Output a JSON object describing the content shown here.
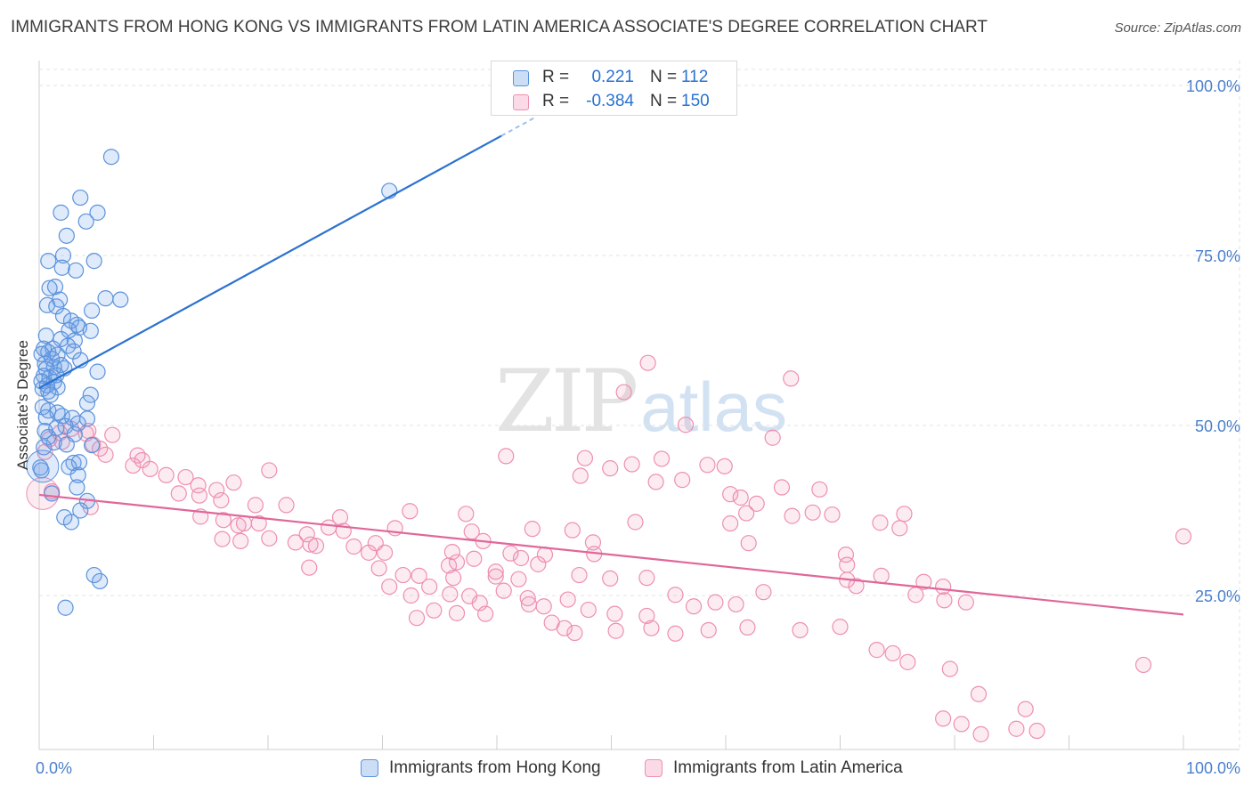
{
  "title": "IMMIGRANTS FROM HONG KONG VS IMMIGRANTS FROM LATIN AMERICA ASSOCIATE'S DEGREE CORRELATION CHART",
  "source": "Source: ZipAtlas.com",
  "watermark": {
    "zip": "ZIP",
    "atlas": "atlas"
  },
  "legend_top": {
    "rows": [
      {
        "r_label": "R =",
        "r_value": "0.221",
        "n_label": "N =",
        "n_value": "112",
        "color": "#5b9bd5"
      },
      {
        "r_label": "R =",
        "r_value": "-0.384",
        "n_label": "N =",
        "n_value": "150",
        "color": "#ee8fb0"
      }
    ]
  },
  "legend_bottom": [
    {
      "label": "Immigrants from Hong Kong",
      "color": "#5b9bd5"
    },
    {
      "label": "Immigrants from Latin America",
      "color": "#ee8fb0"
    }
  ],
  "colors": {
    "blue_fill": "rgba(110,160,230,0.22)",
    "blue_stroke": "#5b93dc",
    "blue_line": "#2a72d0",
    "pink_fill": "rgba(240,150,185,0.18)",
    "pink_stroke": "#ee8fb0",
    "pink_line": "#e0679a",
    "axis_text": "#4a80cc",
    "grid": "#e3e3e3"
  },
  "chart_data": {
    "type": "scatter",
    "title": "IMMIGRANTS FROM HONG KONG VS IMMIGRANTS FROM LATIN AMERICA ASSOCIATE'S DEGREE CORRELATION CHART",
    "xlabel": "",
    "ylabel": "Associate's Degree",
    "xlim": [
      0,
      100
    ],
    "ylim": [
      0,
      100
    ],
    "x_tick_labels": [
      "0.0%",
      "100.0%"
    ],
    "y_ticks": [
      25,
      50,
      75,
      100
    ],
    "y_tick_labels": [
      "25.0%",
      "50.0%",
      "75.0%",
      "100.0%"
    ],
    "grid": true,
    "legend_placement": "bottom-center",
    "series": [
      {
        "name": "Immigrants from Hong Kong",
        "trend": {
          "x0": 0,
          "y0": 55.5,
          "x1": 40.4,
          "y1": 92.6
        },
        "points": [
          [
            6.3,
            89.5
          ],
          [
            30.6,
            84.5
          ],
          [
            3.6,
            83.5
          ],
          [
            1.9,
            81.3
          ],
          [
            5.1,
            81.3
          ],
          [
            4.1,
            80.0
          ],
          [
            2.4,
            77.9
          ],
          [
            0.8,
            74.2
          ],
          [
            2.1,
            75.0
          ],
          [
            4.8,
            74.2
          ],
          [
            2.0,
            73.2
          ],
          [
            3.2,
            72.8
          ],
          [
            1.4,
            70.4
          ],
          [
            0.9,
            70.2
          ],
          [
            1.8,
            68.5
          ],
          [
            5.8,
            68.7
          ],
          [
            7.1,
            68.5
          ],
          [
            0.7,
            67.7
          ],
          [
            1.5,
            67.5
          ],
          [
            4.6,
            66.9
          ],
          [
            2.1,
            66.1
          ],
          [
            2.8,
            65.4
          ],
          [
            3.3,
            64.8
          ],
          [
            3.5,
            64.4
          ],
          [
            2.6,
            64.0
          ],
          [
            4.5,
            63.9
          ],
          [
            0.6,
            63.2
          ],
          [
            1.9,
            62.7
          ],
          [
            3.1,
            62.5
          ],
          [
            1.2,
            61.3
          ],
          [
            2.5,
            61.7
          ],
          [
            0.4,
            61.3
          ],
          [
            0.8,
            60.8
          ],
          [
            1.6,
            60.4
          ],
          [
            3.0,
            60.9
          ],
          [
            0.2,
            60.5
          ],
          [
            1.1,
            59.8
          ],
          [
            3.6,
            59.6
          ],
          [
            0.5,
            59.1
          ],
          [
            1.9,
            58.9
          ],
          [
            1.3,
            58.6
          ],
          [
            0.6,
            58.3
          ],
          [
            2.2,
            58.4
          ],
          [
            5.1,
            57.9
          ],
          [
            0.4,
            57.3
          ],
          [
            0.9,
            57.0
          ],
          [
            1.5,
            57.4
          ],
          [
            0.2,
            56.5
          ],
          [
            1.3,
            56.4
          ],
          [
            0.7,
            55.9
          ],
          [
            1.6,
            55.6
          ],
          [
            0.3,
            55.4
          ],
          [
            0.8,
            55.0
          ],
          [
            1.0,
            54.5
          ],
          [
            4.5,
            54.5
          ],
          [
            4.2,
            53.3
          ],
          [
            0.3,
            52.7
          ],
          [
            0.8,
            52.2
          ],
          [
            1.6,
            51.9
          ],
          [
            2.0,
            51.4
          ],
          [
            0.6,
            51.2
          ],
          [
            2.9,
            51.1
          ],
          [
            4.2,
            51.0
          ],
          [
            3.4,
            50.3
          ],
          [
            2.3,
            49.9
          ],
          [
            1.5,
            49.6
          ],
          [
            0.5,
            49.2
          ],
          [
            3.1,
            48.7
          ],
          [
            0.8,
            48.3
          ],
          [
            1.3,
            47.5
          ],
          [
            2.4,
            47.2
          ],
          [
            4.6,
            47.1
          ],
          [
            0.4,
            46.8
          ],
          [
            3.0,
            44.5
          ],
          [
            3.5,
            44.6
          ],
          [
            2.6,
            43.9
          ],
          [
            0.2,
            43.4
          ],
          [
            3.4,
            42.7
          ],
          [
            3.3,
            40.9
          ],
          [
            1.1,
            40.0
          ],
          [
            4.2,
            38.9
          ],
          [
            3.6,
            37.5
          ],
          [
            2.2,
            36.5
          ],
          [
            2.8,
            35.8
          ],
          [
            4.8,
            28.0
          ],
          [
            5.3,
            27.1
          ],
          [
            2.3,
            23.2
          ],
          [
            0.1,
            43.8
          ]
        ],
        "big_points": [
          [
            0.3,
            44.0
          ]
        ]
      },
      {
        "name": "Immigrants from Latin America",
        "trend": {
          "x0": 0,
          "y0": 39.8,
          "x1": 100,
          "y1": 22.2
        },
        "points": [
          [
            53.2,
            59.2
          ],
          [
            65.7,
            56.9
          ],
          [
            51.1,
            54.9
          ],
          [
            56.5,
            50.1
          ],
          [
            64.1,
            48.2
          ],
          [
            2.8,
            49.5
          ],
          [
            4.3,
            49.2
          ],
          [
            1.8,
            48.9
          ],
          [
            4.1,
            48.8
          ],
          [
            6.4,
            48.6
          ],
          [
            0.9,
            48.0
          ],
          [
            2.0,
            47.6
          ],
          [
            4.7,
            47.2
          ],
          [
            5.3,
            46.6
          ],
          [
            0.5,
            46.1
          ],
          [
            5.8,
            45.7
          ],
          [
            8.6,
            45.6
          ],
          [
            9.0,
            44.9
          ],
          [
            47.7,
            45.2
          ],
          [
            54.4,
            45.1
          ],
          [
            51.8,
            44.3
          ],
          [
            58.4,
            44.2
          ],
          [
            59.9,
            44.0
          ],
          [
            40.8,
            45.5
          ],
          [
            49.9,
            43.7
          ],
          [
            8.2,
            44.1
          ],
          [
            11.1,
            42.7
          ],
          [
            20.1,
            43.4
          ],
          [
            9.7,
            43.6
          ],
          [
            47.3,
            42.6
          ],
          [
            12.8,
            42.4
          ],
          [
            56.2,
            42.0
          ],
          [
            53.9,
            41.7
          ],
          [
            13.9,
            41.2
          ],
          [
            15.5,
            40.5
          ],
          [
            17.0,
            41.6
          ],
          [
            64.9,
            40.9
          ],
          [
            68.2,
            40.6
          ],
          [
            60.4,
            39.9
          ],
          [
            61.3,
            39.4
          ],
          [
            14.0,
            39.7
          ],
          [
            12.2,
            40.0
          ],
          [
            15.9,
            39.0
          ],
          [
            62.7,
            38.5
          ],
          [
            18.9,
            38.3
          ],
          [
            21.6,
            38.3
          ],
          [
            37.3,
            37.0
          ],
          [
            67.6,
            37.2
          ],
          [
            69.3,
            36.9
          ],
          [
            61.8,
            37.1
          ],
          [
            75.6,
            37.0
          ],
          [
            14.1,
            36.6
          ],
          [
            16.1,
            36.1
          ],
          [
            17.4,
            35.3
          ],
          [
            17.9,
            35.6
          ],
          [
            19.2,
            35.6
          ],
          [
            26.3,
            36.5
          ],
          [
            32.4,
            37.4
          ],
          [
            60.4,
            35.6
          ],
          [
            52.1,
            35.8
          ],
          [
            65.8,
            36.7
          ],
          [
            73.5,
            35.7
          ],
          [
            31.1,
            34.9
          ],
          [
            37.8,
            34.4
          ],
          [
            43.1,
            34.8
          ],
          [
            46.6,
            34.6
          ],
          [
            25.3,
            35.0
          ],
          [
            26.6,
            34.5
          ],
          [
            23.4,
            34.0
          ],
          [
            20.1,
            33.4
          ],
          [
            16.0,
            33.3
          ],
          [
            17.6,
            33.0
          ],
          [
            38.8,
            33.0
          ],
          [
            48.4,
            32.8
          ],
          [
            62.0,
            32.7
          ],
          [
            75.2,
            34.9
          ],
          [
            22.4,
            32.8
          ],
          [
            24.2,
            32.3
          ],
          [
            27.5,
            32.2
          ],
          [
            28.8,
            31.3
          ],
          [
            30.2,
            31.3
          ],
          [
            29.4,
            32.7
          ],
          [
            36.1,
            31.4
          ],
          [
            41.2,
            31.2
          ],
          [
            44.2,
            31.0
          ],
          [
            42.1,
            30.5
          ],
          [
            48.5,
            31.1
          ],
          [
            38.0,
            30.4
          ],
          [
            36.5,
            29.9
          ],
          [
            35.8,
            29.4
          ],
          [
            23.7,
            32.5
          ],
          [
            23.6,
            29.1
          ],
          [
            29.7,
            29.0
          ],
          [
            31.8,
            28.0
          ],
          [
            33.2,
            27.9
          ],
          [
            39.9,
            28.5
          ],
          [
            41.9,
            27.4
          ],
          [
            36.2,
            27.6
          ],
          [
            43.6,
            29.6
          ],
          [
            47.2,
            28.0
          ],
          [
            49.9,
            27.5
          ],
          [
            53.1,
            27.6
          ],
          [
            70.5,
            31.0
          ],
          [
            70.6,
            29.5
          ],
          [
            73.6,
            27.9
          ],
          [
            77.3,
            27.0
          ],
          [
            79.0,
            26.3
          ],
          [
            30.6,
            26.3
          ],
          [
            32.5,
            25.0
          ],
          [
            34.1,
            26.3
          ],
          [
            35.9,
            25.2
          ],
          [
            37.6,
            24.9
          ],
          [
            38.5,
            23.9
          ],
          [
            40.6,
            25.7
          ],
          [
            39.9,
            27.8
          ],
          [
            42.7,
            24.6
          ],
          [
            42.8,
            23.7
          ],
          [
            44.1,
            23.4
          ],
          [
            46.2,
            24.4
          ],
          [
            48.0,
            22.9
          ],
          [
            50.3,
            22.3
          ],
          [
            53.1,
            22.0
          ],
          [
            55.6,
            25.1
          ],
          [
            57.2,
            23.4
          ],
          [
            59.1,
            24.0
          ],
          [
            60.9,
            23.7
          ],
          [
            63.3,
            25.5
          ],
          [
            70.6,
            27.3
          ],
          [
            71.4,
            26.4
          ],
          [
            76.6,
            25.1
          ],
          [
            79.1,
            24.3
          ],
          [
            81.0,
            24.0
          ],
          [
            33.0,
            21.7
          ],
          [
            34.5,
            22.8
          ],
          [
            36.5,
            22.4
          ],
          [
            39.0,
            22.3
          ],
          [
            44.8,
            21.0
          ],
          [
            45.9,
            20.2
          ],
          [
            46.8,
            19.5
          ],
          [
            50.4,
            19.8
          ],
          [
            53.5,
            20.2
          ],
          [
            55.6,
            19.4
          ],
          [
            58.5,
            19.9
          ],
          [
            61.9,
            20.3
          ],
          [
            66.5,
            19.9
          ],
          [
            70.0,
            20.4
          ],
          [
            73.2,
            17.0
          ],
          [
            74.6,
            16.5
          ],
          [
            75.9,
            15.2
          ],
          [
            79.6,
            14.2
          ],
          [
            82.1,
            10.5
          ],
          [
            86.2,
            8.3
          ],
          [
            79.0,
            6.9
          ],
          [
            80.6,
            6.1
          ],
          [
            85.4,
            5.4
          ],
          [
            87.2,
            5.1
          ],
          [
            82.3,
            4.6
          ],
          [
            96.5,
            14.8
          ],
          [
            100,
            33.7
          ],
          [
            1.1,
            40.3
          ],
          [
            4.5,
            38.0
          ]
        ],
        "big_points": [
          [
            0.3,
            40.0
          ]
        ]
      }
    ]
  }
}
